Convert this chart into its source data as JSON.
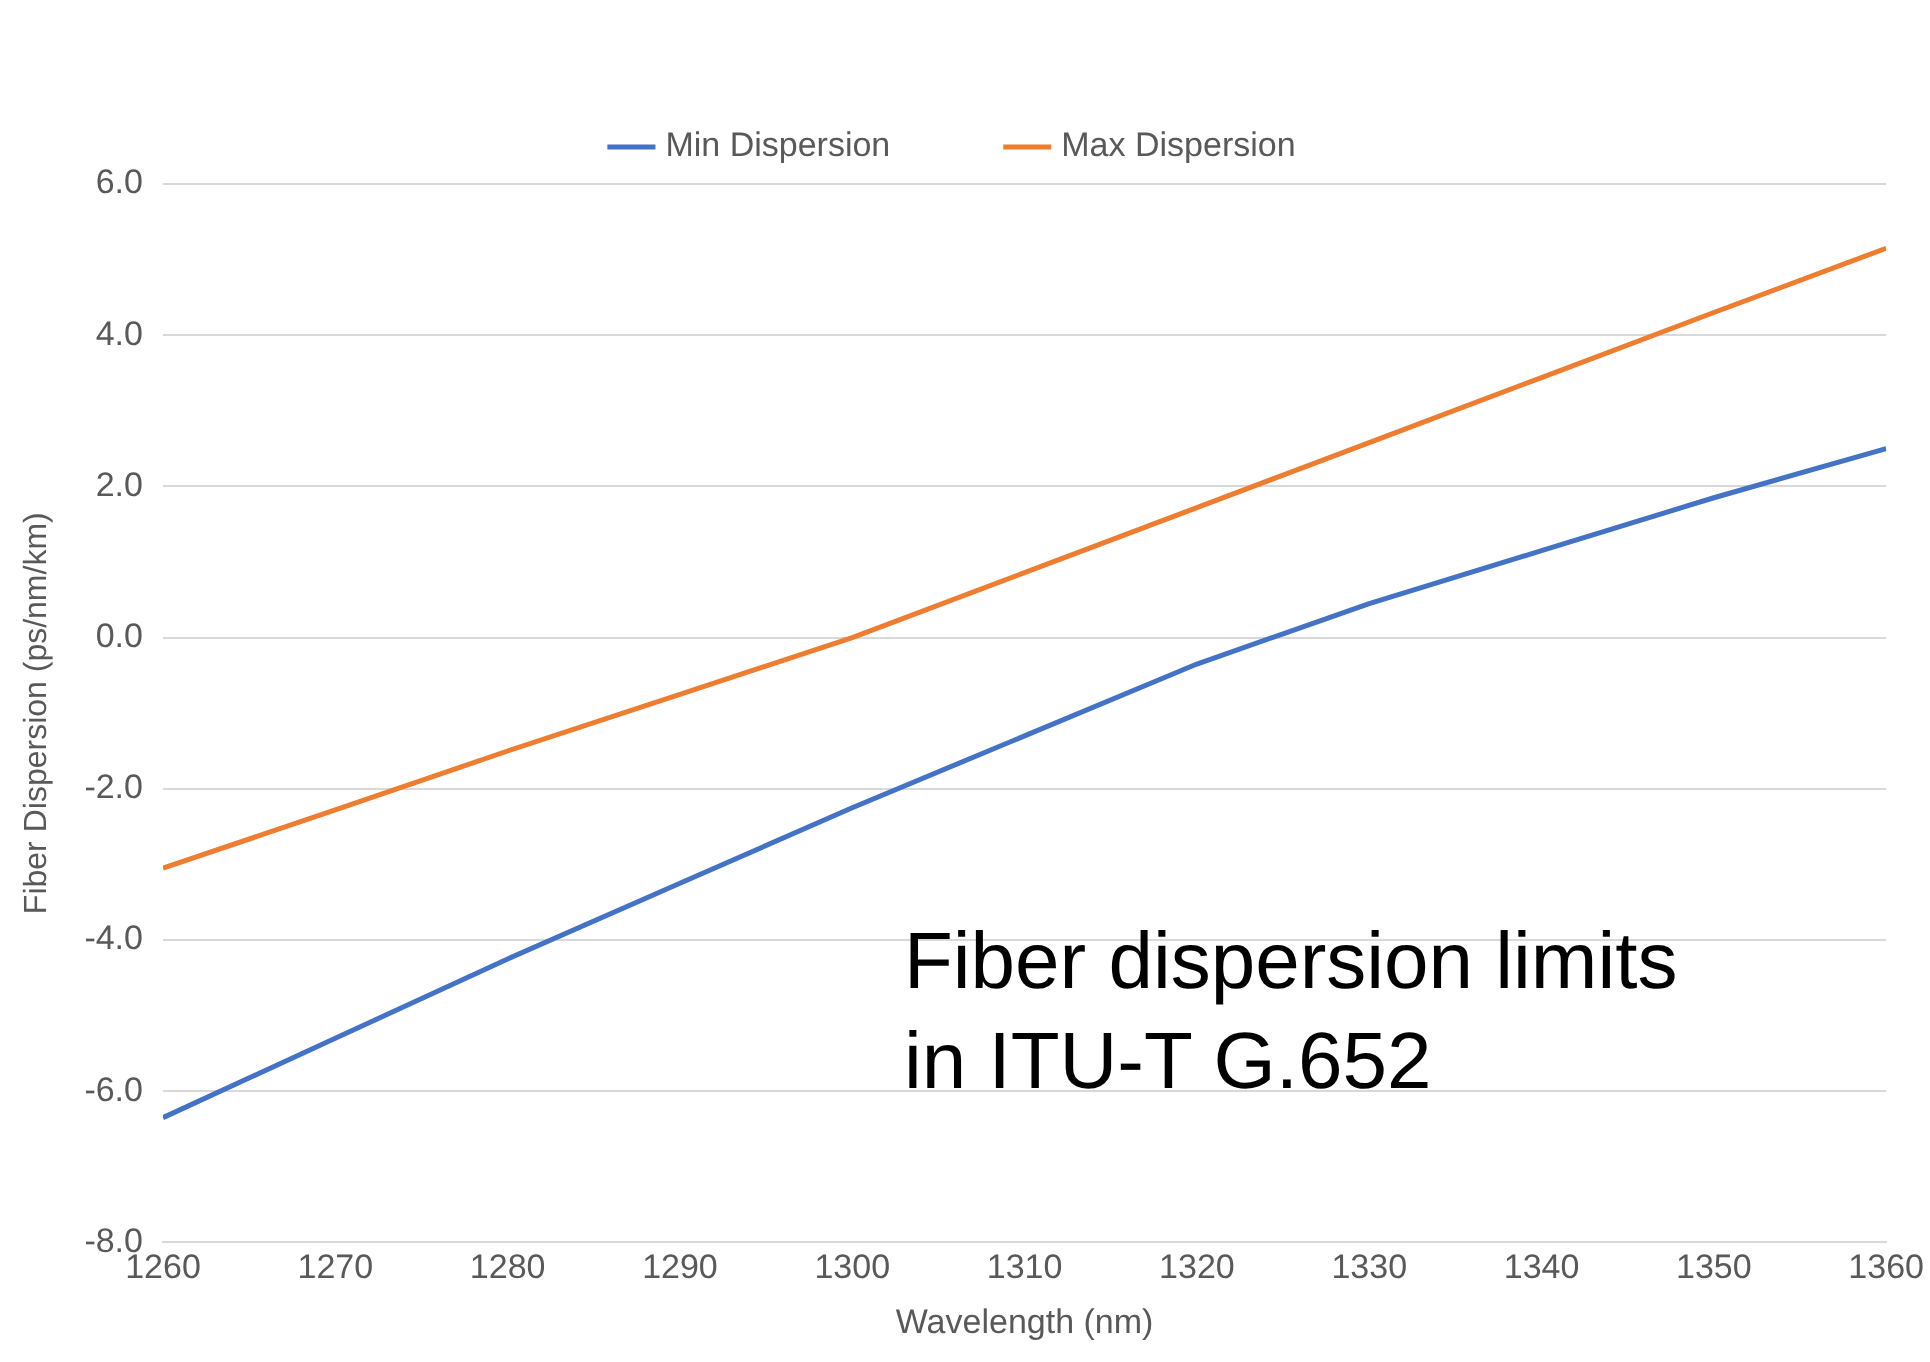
{
  "chart_data": {
    "type": "line",
    "xlabel": "Wavelength (nm)",
    "ylabel": "Fiber Dispersion (ps/nm/km)",
    "x": [
      1260,
      1270,
      1280,
      1290,
      1300,
      1310,
      1320,
      1325,
      1330,
      1340,
      1350,
      1360
    ],
    "series": [
      {
        "name": "Min Dispersion",
        "color": "#4472c4",
        "values": [
          -6.35,
          -5.3,
          -4.25,
          -3.25,
          -2.25,
          -1.3,
          -0.35,
          0.05,
          0.45,
          1.15,
          1.85,
          2.5
        ]
      },
      {
        "name": "Max Dispersion",
        "color": "#ed7d31",
        "values": [
          -3.05,
          -2.28,
          -1.5,
          -0.75,
          0.0,
          0.86,
          1.72,
          2.15,
          2.58,
          3.44,
          4.3,
          5.15
        ]
      }
    ],
    "xlim": [
      1260,
      1360
    ],
    "xticks": [
      1260,
      1270,
      1280,
      1290,
      1300,
      1310,
      1320,
      1330,
      1340,
      1350,
      1360
    ],
    "ylim": [
      -8,
      6
    ],
    "yticks": [
      {
        "value": -8,
        "label": "-8.0"
      },
      {
        "value": -6,
        "label": "-6.0"
      },
      {
        "value": -4,
        "label": "-4.0"
      },
      {
        "value": -2,
        "label": "-2.0"
      },
      {
        "value": 0,
        "label": "0.0"
      },
      {
        "value": 2,
        "label": "2.0"
      },
      {
        "value": 4,
        "label": "4.0"
      },
      {
        "value": 6,
        "label": "6.0"
      }
    ],
    "annotations": [
      "Fiber dispersion limits\nin ITU-T G.652"
    ],
    "grid": "y",
    "legend": "top",
    "marker": "none",
    "line_style": "solid"
  }
}
